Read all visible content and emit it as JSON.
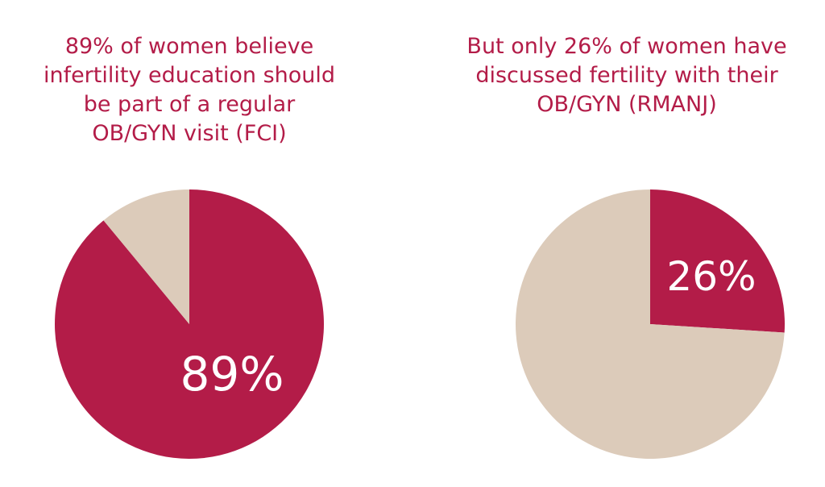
{
  "chart_data": [
    {
      "type": "pie",
      "title_lines": [
        "89% of women believe",
        "infertility education should",
        "be part of a regular",
        "OB/GYN visit (FCI)"
      ],
      "slices": [
        {
          "value": 89,
          "label": "89%",
          "color": "#b31c48"
        },
        {
          "value": 11,
          "label": "",
          "color": "#dccbba"
        }
      ]
    },
    {
      "type": "pie",
      "title_lines": [
        "But only 26% of women have",
        "discussed fertility with their",
        "OB/GYN (RMANJ)"
      ],
      "slices": [
        {
          "value": 26,
          "label": "26%",
          "color": "#b31c48"
        },
        {
          "value": 74,
          "label": "",
          "color": "#dccbba"
        }
      ]
    }
  ]
}
